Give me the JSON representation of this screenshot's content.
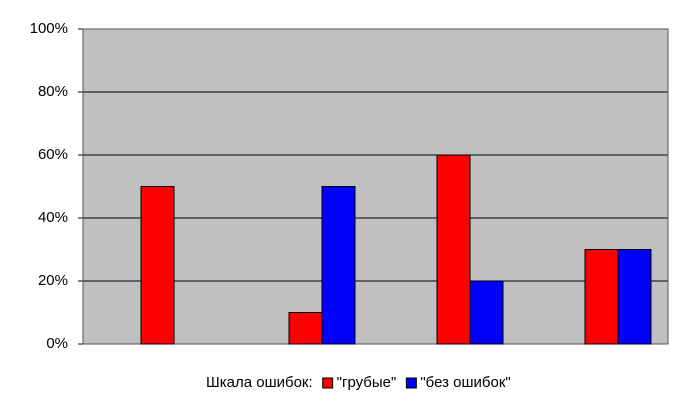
{
  "chart_data": {
    "type": "bar",
    "categories": [
      null,
      null,
      null,
      null
    ],
    "series": [
      {
        "name": "\"грубые\"",
        "color": "#ff0000",
        "values": [
          50,
          10,
          60,
          30
        ]
      },
      {
        "name": "\"без ошибок\"",
        "color": "#0000ff",
        "values": [
          0,
          50,
          20,
          30
        ]
      }
    ],
    "legend_title": "Шкала ошибок:",
    "legend": "bottom",
    "ylim": [
      0,
      100
    ],
    "yticks": [
      {
        "value": 0,
        "label": "0%"
      },
      {
        "value": 20,
        "label": "20%"
      },
      {
        "value": 40,
        "label": "40%"
      },
      {
        "value": 60,
        "label": "60%"
      },
      {
        "value": 80,
        "label": "80%"
      },
      {
        "value": 100,
        "label": "100%"
      }
    ],
    "grid": true,
    "plot_background": "#c0c0c0"
  }
}
